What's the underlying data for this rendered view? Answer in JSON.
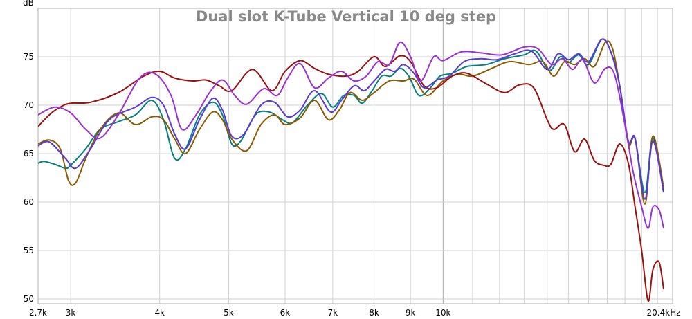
{
  "chart_data": {
    "type": "line",
    "title": "Dual slot K-Tube Vertical 10 deg step",
    "ylabel": "dB",
    "xlabel": "",
    "xscale": "log",
    "xlim": [
      2700,
      21000
    ],
    "ylim": [
      49.5,
      80
    ],
    "x_tick_labels": [
      {
        "value": 2700,
        "label": "2.7k"
      },
      {
        "value": 3000,
        "label": "3k"
      },
      {
        "value": 4000,
        "label": "4k"
      },
      {
        "value": 5000,
        "label": "5k"
      },
      {
        "value": 6000,
        "label": "6k"
      },
      {
        "value": 7000,
        "label": "7k"
      },
      {
        "value": 8000,
        "label": "8k"
      },
      {
        "value": 9000,
        "label": "9k"
      },
      {
        "value": 10000,
        "label": "10k"
      },
      {
        "value": 20400,
        "label": "20.4kHz"
      }
    ],
    "y_ticks": [
      50,
      55,
      60,
      65,
      70,
      75
    ],
    "grid": true,
    "legend": "none",
    "series": [
      {
        "color": "#008080",
        "points": [
          [
            2700,
            64.0
          ],
          [
            2750,
            64.2
          ],
          [
            2850,
            63.9
          ],
          [
            2950,
            63.5
          ],
          [
            3000,
            63.8
          ],
          [
            3150,
            65.5
          ],
          [
            3300,
            67.5
          ],
          [
            3500,
            68.3
          ],
          [
            3700,
            69.0
          ],
          [
            3900,
            70.5
          ],
          [
            4050,
            68.5
          ],
          [
            4200,
            64.5
          ],
          [
            4350,
            65.5
          ],
          [
            4550,
            69.0
          ],
          [
            4750,
            70.3
          ],
          [
            4900,
            69.0
          ],
          [
            5050,
            66.0
          ],
          [
            5200,
            66.3
          ],
          [
            5450,
            69.0
          ],
          [
            5700,
            69.3
          ],
          [
            5950,
            68.5
          ],
          [
            6150,
            68.2
          ],
          [
            6450,
            70.0
          ],
          [
            6750,
            71.2
          ],
          [
            7000,
            69.8
          ],
          [
            7250,
            71.0
          ],
          [
            7500,
            71.0
          ],
          [
            7700,
            70.2
          ],
          [
            7950,
            71.5
          ],
          [
            8200,
            73.0
          ],
          [
            8450,
            73.0
          ],
          [
            8700,
            73.8
          ],
          [
            8950,
            73.0
          ],
          [
            9250,
            71.0
          ],
          [
            9600,
            71.8
          ],
          [
            9900,
            73.0
          ],
          [
            10300,
            73.3
          ],
          [
            10800,
            74.0
          ],
          [
            11500,
            74.2
          ],
          [
            12200,
            74.8
          ],
          [
            13000,
            75.2
          ],
          [
            13500,
            75.6
          ],
          [
            14100,
            73.6
          ],
          [
            14600,
            75.0
          ],
          [
            15000,
            74.4
          ],
          [
            15500,
            75.2
          ],
          [
            16000,
            74.2
          ],
          [
            16700,
            76.8
          ],
          [
            17200,
            75.5
          ],
          [
            17700,
            72.0
          ],
          [
            18200,
            66.2
          ],
          [
            18600,
            66.5
          ],
          [
            19200,
            61.0
          ],
          [
            19700,
            66.6
          ],
          [
            20400,
            61.0
          ]
        ]
      },
      {
        "color": "#8b5a00",
        "points": [
          [
            2700,
            66.0
          ],
          [
            2800,
            66.4
          ],
          [
            2900,
            65.5
          ],
          [
            2980,
            62.2
          ],
          [
            3050,
            62.0
          ],
          [
            3150,
            64.5
          ],
          [
            3300,
            67.5
          ],
          [
            3500,
            69.2
          ],
          [
            3700,
            68.0
          ],
          [
            3900,
            68.8
          ],
          [
            4050,
            68.5
          ],
          [
            4200,
            66.5
          ],
          [
            4350,
            65.0
          ],
          [
            4550,
            67.5
          ],
          [
            4750,
            69.3
          ],
          [
            4900,
            68.5
          ],
          [
            5050,
            66.5
          ],
          [
            5300,
            65.3
          ],
          [
            5550,
            68.0
          ],
          [
            5800,
            69.0
          ],
          [
            6000,
            68.0
          ],
          [
            6300,
            68.7
          ],
          [
            6600,
            70.5
          ],
          [
            6900,
            68.5
          ],
          [
            7150,
            69.5
          ],
          [
            7400,
            71.3
          ],
          [
            7700,
            70.5
          ],
          [
            8000,
            71.3
          ],
          [
            8400,
            72.5
          ],
          [
            8800,
            72.5
          ],
          [
            9100,
            72.7
          ],
          [
            9500,
            71.0
          ],
          [
            10000,
            72.5
          ],
          [
            10500,
            73.2
          ],
          [
            11000,
            73.0
          ],
          [
            11700,
            73.8
          ],
          [
            12400,
            74.5
          ],
          [
            13200,
            74.2
          ],
          [
            13800,
            74.5
          ],
          [
            14300,
            73.0
          ],
          [
            14800,
            74.5
          ],
          [
            15300,
            74.2
          ],
          [
            15800,
            74.8
          ],
          [
            16300,
            74.0
          ],
          [
            16900,
            76.5
          ],
          [
            17300,
            75.8
          ],
          [
            17700,
            72.0
          ],
          [
            18200,
            66.0
          ],
          [
            18600,
            66.6
          ],
          [
            19200,
            59.8
          ],
          [
            19700,
            66.8
          ],
          [
            20400,
            61.5
          ]
        ]
      },
      {
        "color": "#9b1010",
        "points": [
          [
            2700,
            67.8
          ],
          [
            2800,
            69.0
          ],
          [
            2900,
            69.8
          ],
          [
            3000,
            70.2
          ],
          [
            3200,
            70.3
          ],
          [
            3500,
            71.3
          ],
          [
            3800,
            73.0
          ],
          [
            4000,
            73.5
          ],
          [
            4200,
            72.8
          ],
          [
            4450,
            72.5
          ],
          [
            4650,
            72.6
          ],
          [
            4850,
            72.0
          ],
          [
            5050,
            71.5
          ],
          [
            5400,
            73.7
          ],
          [
            5750,
            71.5
          ],
          [
            6000,
            73.5
          ],
          [
            6300,
            74.6
          ],
          [
            6600,
            73.8
          ],
          [
            6900,
            73.2
          ],
          [
            7300,
            73.0
          ],
          [
            7600,
            73.5
          ],
          [
            8000,
            75.0
          ],
          [
            8300,
            74.0
          ],
          [
            8700,
            75.1
          ],
          [
            9000,
            74.5
          ],
          [
            9400,
            72.0
          ],
          [
            9800,
            71.8
          ],
          [
            10300,
            73.0
          ],
          [
            10800,
            73.3
          ],
          [
            11500,
            72.2
          ],
          [
            12200,
            71.3
          ],
          [
            12800,
            72.1
          ],
          [
            13400,
            71.8
          ],
          [
            14000,
            68.5
          ],
          [
            14300,
            67.5
          ],
          [
            14800,
            68.0
          ],
          [
            15300,
            65.2
          ],
          [
            15800,
            66.5
          ],
          [
            16300,
            64.3
          ],
          [
            16800,
            63.8
          ],
          [
            17200,
            63.9
          ],
          [
            17700,
            66.0
          ],
          [
            18200,
            64.0
          ],
          [
            18600,
            59.5
          ],
          [
            19000,
            55.0
          ],
          [
            19400,
            49.8
          ],
          [
            19700,
            53.0
          ],
          [
            20100,
            53.8
          ],
          [
            20400,
            51.0
          ]
        ]
      },
      {
        "color": "#5b3ad1",
        "points": [
          [
            2700,
            65.8
          ],
          [
            2800,
            66.2
          ],
          [
            2950,
            64.5
          ],
          [
            3050,
            63.5
          ],
          [
            3200,
            65.5
          ],
          [
            3400,
            68.5
          ],
          [
            3700,
            69.8
          ],
          [
            3900,
            70.8
          ],
          [
            4050,
            70.0
          ],
          [
            4200,
            67.0
          ],
          [
            4350,
            65.5
          ],
          [
            4550,
            68.5
          ],
          [
            4750,
            70.7
          ],
          [
            4900,
            69.5
          ],
          [
            5050,
            66.8
          ],
          [
            5250,
            67.0
          ],
          [
            5550,
            70.0
          ],
          [
            5800,
            70.3
          ],
          [
            6050,
            68.8
          ],
          [
            6300,
            69.5
          ],
          [
            6600,
            71.5
          ],
          [
            6950,
            69.3
          ],
          [
            7200,
            70.5
          ],
          [
            7500,
            72.0
          ],
          [
            7750,
            71.5
          ],
          [
            8000,
            72.5
          ],
          [
            8300,
            73.7
          ],
          [
            8550,
            73.5
          ],
          [
            8800,
            74.2
          ],
          [
            9100,
            73.3
          ],
          [
            9400,
            71.8
          ],
          [
            9800,
            72.6
          ],
          [
            10200,
            73.0
          ],
          [
            10700,
            74.5
          ],
          [
            11300,
            74.8
          ],
          [
            11900,
            74.7
          ],
          [
            12600,
            75.3
          ],
          [
            13300,
            75.6
          ],
          [
            14000,
            73.7
          ],
          [
            14500,
            75.3
          ],
          [
            15000,
            74.7
          ],
          [
            15500,
            75.3
          ],
          [
            16000,
            74.5
          ],
          [
            16700,
            76.8
          ],
          [
            17200,
            75.5
          ],
          [
            17700,
            72.0
          ],
          [
            18200,
            66.3
          ],
          [
            18600,
            66.6
          ],
          [
            19200,
            60.3
          ],
          [
            19700,
            66.3
          ],
          [
            20400,
            61.0
          ]
        ]
      },
      {
        "color": "#9b30d0",
        "points": [
          [
            2700,
            69.0
          ],
          [
            2850,
            69.8
          ],
          [
            3000,
            69.2
          ],
          [
            3150,
            67.5
          ],
          [
            3300,
            66.6
          ],
          [
            3500,
            69.0
          ],
          [
            3750,
            72.8
          ],
          [
            3950,
            73.2
          ],
          [
            4150,
            71.0
          ],
          [
            4300,
            67.5
          ],
          [
            4500,
            69.0
          ],
          [
            4700,
            71.3
          ],
          [
            4900,
            72.6
          ],
          [
            5100,
            71.0
          ],
          [
            5300,
            70.1
          ],
          [
            5600,
            71.7
          ],
          [
            5850,
            71.0
          ],
          [
            6050,
            72.8
          ],
          [
            6300,
            74.3
          ],
          [
            6600,
            71.8
          ],
          [
            6900,
            72.8
          ],
          [
            7200,
            73.5
          ],
          [
            7500,
            72.5
          ],
          [
            7800,
            73.0
          ],
          [
            8100,
            74.5
          ],
          [
            8400,
            74.2
          ],
          [
            8700,
            76.5
          ],
          [
            9000,
            75.0
          ],
          [
            9300,
            72.5
          ],
          [
            9700,
            75.0
          ],
          [
            10000,
            74.6
          ],
          [
            10600,
            75.5
          ],
          [
            11300,
            75.4
          ],
          [
            12100,
            75.2
          ],
          [
            13000,
            76.0
          ],
          [
            13600,
            75.8
          ],
          [
            14200,
            74.2
          ],
          [
            14700,
            74.8
          ],
          [
            15200,
            73.7
          ],
          [
            15700,
            74.7
          ],
          [
            16300,
            72.3
          ],
          [
            16900,
            73.8
          ],
          [
            17400,
            73.2
          ],
          [
            18000,
            68.0
          ],
          [
            18500,
            63.0
          ],
          [
            19000,
            59.5
          ],
          [
            19400,
            57.3
          ],
          [
            19700,
            59.5
          ],
          [
            20100,
            59.2
          ],
          [
            20400,
            57.3
          ]
        ]
      }
    ]
  }
}
